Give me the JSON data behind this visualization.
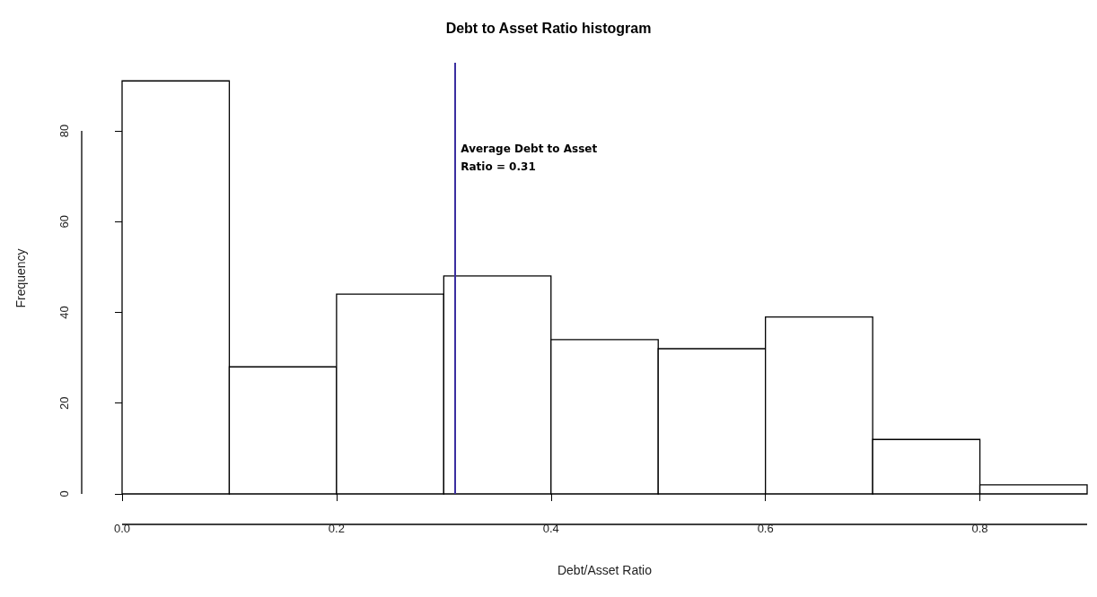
{
  "chart_data": {
    "type": "histogram",
    "title": "Debt to Asset Ratio histogram",
    "xlabel": "Debt/Asset Ratio",
    "ylabel": "Frequency",
    "bins": [
      0,
      0.1,
      0.2,
      0.3,
      0.4,
      0.5,
      0.6,
      0.7,
      0.8,
      0.9
    ],
    "values": [
      91,
      28,
      44,
      48,
      34,
      32,
      39,
      12,
      2
    ],
    "color": "#ffffff",
    "xlim": [
      0,
      0.9
    ],
    "xticks": [
      {
        "value": 0,
        "label": "0.0"
      },
      0.2,
      0.4,
      0.6,
      0.8
    ],
    "ylim": [
      0,
      95
    ],
    "yticks": [
      0,
      20,
      40,
      60,
      80
    ],
    "grid": false,
    "ref_lines": [
      {
        "axis": "x",
        "value": 0.31,
        "label": "Average Debt to Asset Ratio = 0.31",
        "color": "#3b2fa0"
      }
    ]
  }
}
